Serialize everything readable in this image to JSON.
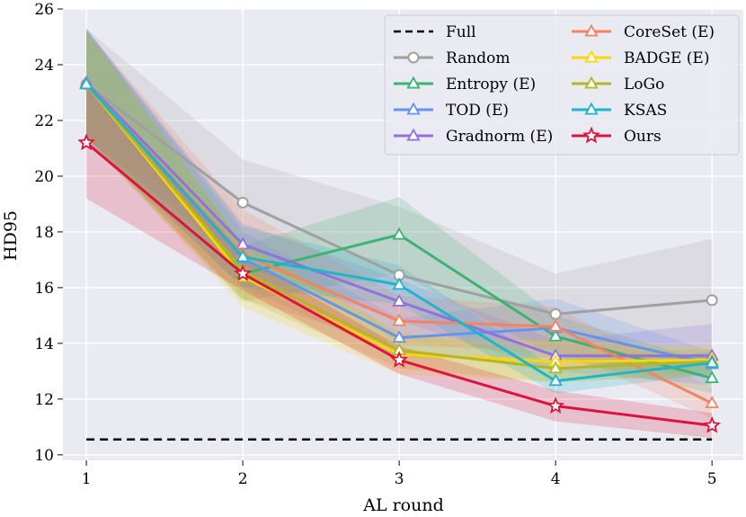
{
  "chart_data": {
    "type": "line",
    "title": "",
    "xlabel": "AL round",
    "ylabel": "HD95",
    "x": [
      1,
      2,
      3,
      4,
      5
    ],
    "xlim": [
      0.85,
      5.2
    ],
    "ylim": [
      9.8,
      26.0
    ],
    "xticks": [
      "1",
      "2",
      "3",
      "4",
      "5"
    ],
    "yticks": [
      "10",
      "12",
      "14",
      "16",
      "18",
      "20",
      "22",
      "24",
      "26"
    ],
    "ytick_values": [
      10,
      12,
      14,
      16,
      18,
      20,
      22,
      24,
      26
    ],
    "grid": true,
    "legend_position": "top-right",
    "full_baseline": {
      "name": "Full",
      "value": 10.55,
      "color": "#000000"
    },
    "series": [
      {
        "name": "Random",
        "color": "#a0a0a0",
        "marker": "circle",
        "values": [
          23.3,
          19.05,
          16.45,
          15.05,
          15.55
        ],
        "lower": [
          21.3,
          17.5,
          14.0,
          13.6,
          13.4
        ],
        "upper": [
          25.3,
          20.6,
          18.9,
          16.5,
          17.75
        ]
      },
      {
        "name": "Entropy (E)",
        "color": "#3cb371",
        "marker": "triangle",
        "values": [
          23.3,
          16.5,
          17.9,
          14.25,
          12.75
        ],
        "lower": [
          21.3,
          15.5,
          16.5,
          13.5,
          12.2
        ],
        "upper": [
          25.3,
          17.5,
          19.25,
          15.0,
          13.3
        ]
      },
      {
        "name": "TOD (E)",
        "color": "#6495ed",
        "marker": "triangle",
        "values": [
          23.3,
          17.05,
          14.2,
          14.55,
          13.25
        ],
        "lower": [
          21.3,
          16.0,
          13.5,
          13.5,
          12.8
        ],
        "upper": [
          25.3,
          18.0,
          14.9,
          15.6,
          13.7
        ]
      },
      {
        "name": "Gradnorm (E)",
        "color": "#9370db",
        "marker": "triangle",
        "values": [
          23.35,
          17.55,
          15.5,
          13.55,
          13.55
        ],
        "lower": [
          21.4,
          16.8,
          14.8,
          13.0,
          12.5
        ],
        "upper": [
          25.3,
          18.3,
          16.3,
          14.1,
          14.7
        ]
      },
      {
        "name": "CoreSet (E)",
        "color": "#f4845f",
        "marker": "triangle",
        "values": [
          23.3,
          17.2,
          14.8,
          14.6,
          11.85
        ],
        "lower": [
          21.4,
          15.6,
          13.9,
          13.8,
          11.3
        ],
        "upper": [
          25.2,
          18.8,
          15.7,
          15.3,
          12.4
        ]
      },
      {
        "name": "BADGE (E)",
        "color": "#ffd700",
        "marker": "triangle",
        "values": [
          23.3,
          16.4,
          13.6,
          13.35,
          13.4
        ],
        "lower": [
          21.4,
          15.3,
          12.9,
          12.6,
          12.9
        ],
        "upper": [
          25.2,
          17.6,
          14.3,
          14.1,
          13.9
        ]
      },
      {
        "name": "LoGo",
        "color": "#b5b52a",
        "marker": "triangle",
        "values": [
          23.3,
          16.6,
          13.75,
          13.1,
          13.35
        ],
        "lower": [
          21.4,
          15.6,
          13.1,
          12.6,
          12.9
        ],
        "upper": [
          25.2,
          17.6,
          14.4,
          13.6,
          13.8
        ]
      },
      {
        "name": "KSAS",
        "color": "#1fb5c9",
        "marker": "triangle",
        "values": [
          23.3,
          17.1,
          16.1,
          12.65,
          13.3
        ],
        "lower": [
          21.4,
          16.0,
          15.4,
          12.2,
          12.9
        ],
        "upper": [
          25.2,
          18.2,
          16.8,
          13.1,
          13.7
        ]
      },
      {
        "name": "Ours",
        "color": "#dc143c",
        "marker": "star",
        "values": [
          21.2,
          16.5,
          13.4,
          11.75,
          11.05
        ],
        "lower": [
          19.2,
          15.9,
          12.9,
          11.2,
          10.6
        ],
        "upper": [
          23.2,
          17.1,
          13.9,
          12.3,
          11.5
        ]
      }
    ],
    "legend_columns": [
      [
        "Full",
        "Random",
        "Entropy (E)",
        "TOD (E)",
        "Gradnorm (E)"
      ],
      [
        "CoreSet (E)",
        "BADGE (E)",
        "LoGo",
        "KSAS",
        "Ours"
      ]
    ]
  }
}
